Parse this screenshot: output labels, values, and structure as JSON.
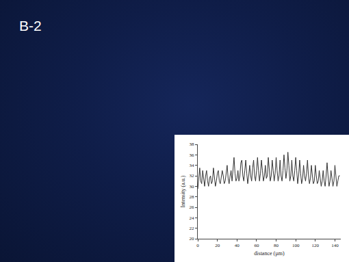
{
  "panel_label": "B-2",
  "chart_data": {
    "type": "line",
    "x_label": "distance (µm)",
    "y_label": "Intensity (a.u.)",
    "x": [
      0,
      1,
      2,
      3,
      4,
      5,
      6,
      7,
      8,
      9,
      10,
      11,
      12,
      13,
      14,
      15,
      16,
      17,
      18,
      19,
      20,
      21,
      22,
      23,
      24,
      25,
      26,
      27,
      28,
      29,
      30,
      31,
      32,
      33,
      34,
      35,
      36,
      37,
      38,
      39,
      40,
      41,
      42,
      43,
      44,
      45,
      46,
      47,
      48,
      49,
      50,
      51,
      52,
      53,
      54,
      55,
      56,
      57,
      58,
      59,
      60,
      61,
      62,
      63,
      64,
      65,
      66,
      67,
      68,
      69,
      70,
      71,
      72,
      73,
      74,
      75,
      76,
      77,
      78,
      79,
      80,
      81,
      82,
      83,
      84,
      85,
      86,
      87,
      88,
      89,
      90,
      91,
      92,
      93,
      94,
      95,
      96,
      97,
      98,
      99,
      100,
      101,
      102,
      103,
      104,
      105,
      106,
      107,
      108,
      109,
      110,
      111,
      112,
      113,
      114,
      115,
      116,
      117,
      118,
      119,
      120,
      121,
      122,
      123,
      124,
      125,
      126,
      127,
      128,
      129,
      130,
      131,
      132,
      133,
      134,
      135,
      136,
      137,
      138,
      139,
      140,
      141,
      142,
      143,
      144,
      145
    ],
    "values": [
      29.5,
      32,
      33.5,
      31,
      30.5,
      33,
      31.5,
      30,
      32,
      33,
      31,
      30,
      31.5,
      32,
      30.5,
      31,
      33.5,
      32,
      30,
      31,
      32.5,
      33,
      31,
      30.5,
      31.5,
      33,
      32,
      30.5,
      31,
      33,
      34,
      31.5,
      30.5,
      32,
      33,
      31,
      33.5,
      35.5,
      32.5,
      31,
      31.5,
      33,
      31,
      32,
      34.5,
      35,
      32,
      31,
      33,
      35,
      32.5,
      30.5,
      32,
      34,
      32,
      31,
      33.5,
      35,
      32,
      31,
      33,
      35.5,
      33,
      31,
      32.5,
      35,
      33,
      31,
      32,
      34,
      31.5,
      32,
      35.5,
      33.5,
      31,
      32,
      35,
      33,
      31,
      32.5,
      35.5,
      33,
      31,
      32,
      35,
      32,
      31,
      33,
      36,
      33.5,
      31.5,
      33,
      36.5,
      34,
      31,
      32,
      35,
      32,
      31,
      33,
      35.5,
      33,
      30.5,
      32,
      35,
      32.5,
      30.5,
      31.5,
      34,
      32,
      31,
      32.5,
      35,
      32,
      30.5,
      31.5,
      34,
      32,
      30.5,
      31,
      34,
      32,
      30.5,
      31,
      33,
      31.5,
      30,
      31,
      33,
      31,
      30,
      32,
      34.5,
      32,
      30,
      31,
      33,
      31.5,
      30,
      31,
      34,
      32,
      30,
      31,
      32,
      32
    ],
    "color": "#333333",
    "xlim": [
      0,
      146
    ],
    "ylim": [
      20,
      38
    ],
    "xticks": [
      0,
      20,
      40,
      60,
      80,
      100,
      120,
      140
    ],
    "yticks": [
      20,
      22,
      24,
      26,
      28,
      30,
      32,
      34,
      36,
      38
    ],
    "grid": false
  }
}
